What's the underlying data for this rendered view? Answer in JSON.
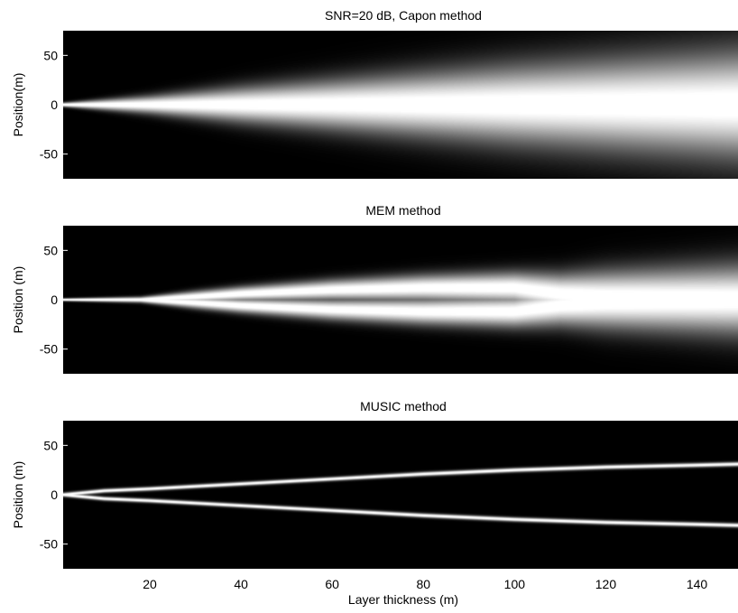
{
  "chart_data": [
    {
      "type": "heatmap",
      "title": "SNR=20 dB, Capon method",
      "xlabel": "",
      "ylabel": "Position(m)",
      "xlim": [
        1,
        149
      ],
      "ylim": [
        -75,
        75
      ],
      "yticks": [
        50,
        0,
        -50
      ],
      "xticks": [],
      "colormap": "gray",
      "ridges": [
        {
          "x": [
            1,
            20,
            40,
            60,
            80,
            100,
            120,
            140,
            149
          ],
          "y": [
            0,
            0,
            0,
            0,
            0,
            0,
            0,
            0,
            0
          ],
          "halfwidth": [
            1.5,
            6,
            12,
            17,
            22,
            27,
            31,
            35,
            37
          ]
        }
      ]
    },
    {
      "type": "heatmap",
      "title": "MEM method",
      "xlabel": "",
      "ylabel": "Position (m)",
      "xlim": [
        1,
        149
      ],
      "ylim": [
        -75,
        75
      ],
      "yticks": [
        50,
        0,
        -50
      ],
      "xticks": [],
      "colormap": "gray",
      "ridges": [
        {
          "x": [
            1,
            18,
            30,
            40,
            60,
            80,
            100,
            110,
            120,
            140,
            149
          ],
          "y": [
            0,
            0,
            3,
            6,
            10,
            12,
            12,
            6,
            3,
            1,
            0
          ],
          "halfwidth": [
            1,
            2,
            4,
            5,
            7,
            9,
            11,
            14,
            18,
            22,
            24
          ]
        },
        {
          "x": [
            1,
            18,
            30,
            40,
            60,
            80,
            100,
            110,
            120,
            140,
            149
          ],
          "y": [
            0,
            0,
            -3,
            -6,
            -10,
            -12,
            -12,
            -6,
            -3,
            -1,
            0
          ],
          "halfwidth": [
            1,
            2,
            4,
            5,
            7,
            9,
            11,
            14,
            18,
            22,
            24
          ]
        }
      ]
    },
    {
      "type": "heatmap",
      "title": "MUSIC method",
      "xlabel": "Layer thickness (m)",
      "ylabel": "Position (m)",
      "xlim": [
        1,
        149
      ],
      "ylim": [
        -75,
        75
      ],
      "yticks": [
        50,
        0,
        -50
      ],
      "xticks": [
        20,
        40,
        60,
        80,
        100,
        120,
        140
      ],
      "colormap": "gray",
      "ridges": [
        {
          "x": [
            1,
            10,
            20,
            40,
            60,
            80,
            100,
            120,
            140,
            149
          ],
          "y": [
            0,
            4,
            6,
            11,
            16,
            21,
            25,
            28,
            30,
            31
          ],
          "halfwidth": [
            1.4,
            1.4,
            1.4,
            1.4,
            1.4,
            1.5,
            1.5,
            1.5,
            1.5,
            1.5
          ]
        },
        {
          "x": [
            1,
            10,
            20,
            40,
            60,
            80,
            100,
            120,
            140,
            149
          ],
          "y": [
            0,
            -4,
            -6,
            -11,
            -16,
            -21,
            -25,
            -28,
            -30,
            -31
          ],
          "halfwidth": [
            1.4,
            1.4,
            1.4,
            1.4,
            1.4,
            1.5,
            1.5,
            1.5,
            1.5,
            1.5
          ]
        }
      ]
    }
  ]
}
